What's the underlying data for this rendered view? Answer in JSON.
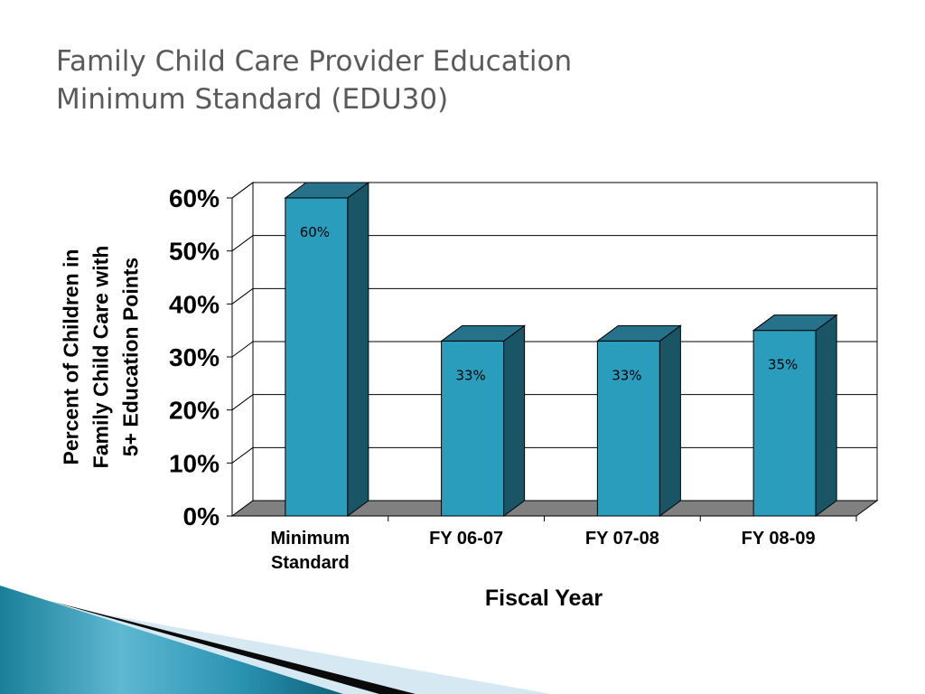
{
  "slide": {
    "title_line1": "Family Child Care Provider Education",
    "title_line2": "Minimum Standard (EDU30)"
  },
  "colors": {
    "bar_front": "#2a9dbd",
    "bar_top": "#25728a",
    "bar_side": "#1a5566",
    "floor": "#808080",
    "title": "#5a5a5a"
  },
  "chart_data": {
    "type": "bar",
    "title": "",
    "xlabel": "Fiscal Year",
    "ylabel_lines": [
      "Percent of Children in",
      "Family Child Care with",
      "5+ Education Points"
    ],
    "categories": [
      [
        "Minimum",
        "Standard"
      ],
      [
        "FY 06-07"
      ],
      [
        "FY 07-08"
      ],
      [
        "FY 08-09"
      ]
    ],
    "values": [
      60,
      33,
      33,
      35
    ],
    "data_labels": [
      "60%",
      "33%",
      "33%",
      "35%"
    ],
    "ylim": [
      0,
      60
    ],
    "yticks": [
      "0%",
      "10%",
      "20%",
      "30%",
      "40%",
      "50%",
      "60%"
    ],
    "ytick_values": [
      0,
      10,
      20,
      30,
      40,
      50,
      60
    ],
    "grid": true,
    "style": "3d-column"
  }
}
